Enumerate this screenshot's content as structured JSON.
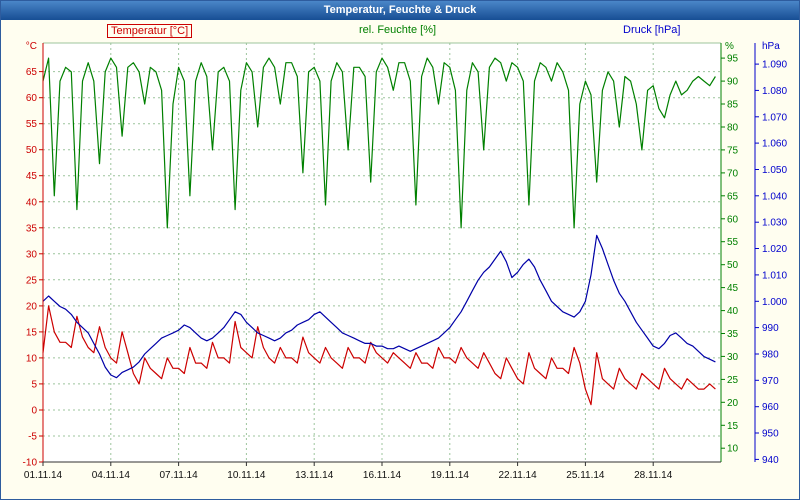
{
  "window": {
    "title": "Temperatur, Feuchte & Druck"
  },
  "legend": {
    "temperature": "Temperatur [°C]",
    "humidity": "rel. Feuchte [%]",
    "pressure": "Druck [hPa]"
  },
  "chart_data": {
    "type": "line",
    "title": "Temperatur, Feuchte & Druck",
    "grid": {
      "color": "#9cc49c",
      "dash": "2,3"
    },
    "x_axis": {
      "tick_labels": [
        "01.11.14",
        "04.11.14",
        "07.11.14",
        "10.11.14",
        "13.11.14",
        "16.11.14",
        "19.11.14",
        "22.11.14",
        "25.11.14",
        "28.11.14"
      ],
      "tick_days": [
        0,
        3,
        6,
        9,
        12,
        15,
        18,
        21,
        24,
        27
      ],
      "day_range": [
        0,
        30
      ]
    },
    "axes": {
      "temperature": {
        "unit": "°C",
        "color": "#cc0000",
        "side": "left",
        "ticks": [
          65,
          60,
          55,
          50,
          45,
          40,
          35,
          30,
          25,
          20,
          15,
          10,
          5,
          0,
          -5,
          -10
        ],
        "range": [
          -10,
          70.5
        ]
      },
      "humidity": {
        "unit": "%",
        "color": "#008000",
        "side": "right-inner",
        "ticks": [
          95,
          90,
          85,
          80,
          75,
          70,
          65,
          60,
          55,
          50,
          45,
          40,
          35,
          30,
          25,
          20,
          15,
          10
        ],
        "range": [
          7,
          98.3
        ]
      },
      "pressure": {
        "unit": "hPa",
        "color": "#0000cc",
        "side": "right-outer",
        "tick_labels": [
          "1.090",
          "1.080",
          "1.070",
          "1.060",
          "1.050",
          "1.040",
          "1.030",
          "1.020",
          "1.010",
          "1.000",
          "990",
          "980",
          "970",
          "960",
          "950",
          "940"
        ],
        "tick_values": [
          1090,
          1080,
          1070,
          1060,
          1050,
          1040,
          1030,
          1020,
          1010,
          1000,
          990,
          980,
          970,
          960,
          950,
          940
        ],
        "range": [
          939,
          1098
        ]
      }
    },
    "x_days": [
      0,
      0.25,
      0.5,
      0.75,
      1,
      1.25,
      1.5,
      1.75,
      2,
      2.25,
      2.5,
      2.75,
      3,
      3.25,
      3.5,
      3.75,
      4,
      4.25,
      4.5,
      4.75,
      5,
      5.25,
      5.5,
      5.75,
      6,
      6.25,
      6.5,
      6.75,
      7,
      7.25,
      7.5,
      7.75,
      8,
      8.25,
      8.5,
      8.75,
      9,
      9.25,
      9.5,
      9.75,
      10,
      10.25,
      10.5,
      10.75,
      11,
      11.25,
      11.5,
      11.75,
      12,
      12.25,
      12.5,
      12.75,
      13,
      13.25,
      13.5,
      13.75,
      14,
      14.25,
      14.5,
      14.75,
      15,
      15.25,
      15.5,
      15.75,
      16,
      16.25,
      16.5,
      16.75,
      17,
      17.25,
      17.5,
      17.75,
      18,
      18.25,
      18.5,
      18.75,
      19,
      19.25,
      19.5,
      19.75,
      20,
      20.25,
      20.5,
      20.75,
      21,
      21.25,
      21.5,
      21.75,
      22,
      22.25,
      22.5,
      22.75,
      23,
      23.25,
      23.5,
      23.75,
      24,
      24.25,
      24.5,
      24.75,
      25,
      25.25,
      25.5,
      25.75,
      26,
      26.25,
      26.5,
      26.75,
      27,
      27.25,
      27.5,
      27.75,
      28,
      28.25,
      28.5,
      28.75,
      29,
      29.25,
      29.5,
      29.75
    ],
    "series": [
      {
        "name": "Temperatur",
        "slug": "temperature",
        "unit": "°C",
        "color": "#cc0000",
        "axis": "temperature",
        "values": [
          11,
          20,
          15,
          13,
          13,
          12,
          18,
          14,
          12,
          11,
          16,
          12,
          10,
          9,
          15,
          11,
          7,
          5,
          10,
          8,
          7,
          6,
          10,
          8,
          8,
          7,
          12,
          9,
          9,
          8,
          13,
          10,
          10,
          9,
          17,
          12,
          11,
          10,
          16,
          12,
          10,
          9,
          12,
          10,
          10,
          9,
          14,
          11,
          10,
          9,
          12,
          10,
          9,
          8,
          12,
          10,
          10,
          9,
          13,
          11,
          10,
          9,
          11,
          10,
          9,
          8,
          11,
          9,
          9,
          8,
          12,
          10,
          10,
          9,
          12,
          10,
          9,
          8,
          11,
          9,
          7,
          6,
          10,
          8,
          6,
          5,
          11,
          8,
          7,
          6,
          10,
          8,
          8,
          7,
          12,
          9,
          4,
          1,
          11,
          6,
          5,
          4,
          8,
          6,
          5,
          4,
          7,
          6,
          5,
          4,
          8,
          6,
          5,
          4,
          6,
          5,
          4,
          4,
          5,
          4
        ]
      },
      {
        "name": "rel. Feuchte",
        "slug": "humidity",
        "unit": "%",
        "color": "#008000",
        "axis": "humidity",
        "values": [
          90,
          95,
          65,
          90,
          93,
          92,
          62,
          90,
          94,
          90,
          72,
          92,
          95,
          93,
          78,
          93,
          94,
          92,
          85,
          93,
          92,
          88,
          58,
          85,
          93,
          90,
          65,
          90,
          94,
          91,
          75,
          92,
          93,
          90,
          62,
          88,
          94,
          92,
          80,
          93,
          95,
          93,
          85,
          94,
          94,
          91,
          70,
          92,
          93,
          90,
          63,
          90,
          94,
          92,
          75,
          93,
          93,
          91,
          68,
          92,
          95,
          93,
          88,
          94,
          94,
          90,
          63,
          91,
          95,
          93,
          85,
          94,
          93,
          88,
          58,
          88,
          94,
          92,
          75,
          93,
          95,
          94,
          90,
          94,
          93,
          90,
          63,
          90,
          94,
          93,
          90,
          94,
          92,
          88,
          58,
          85,
          90,
          87,
          68,
          88,
          92,
          90,
          80,
          91,
          90,
          85,
          75,
          88,
          89,
          84,
          82,
          87,
          90,
          87,
          88,
          90,
          91,
          90,
          89,
          91
        ]
      },
      {
        "name": "Druck",
        "slug": "pressure",
        "unit": "hPa",
        "color": "#0000a8",
        "axis": "pressure",
        "values": [
          1000,
          1002,
          1000,
          998,
          997,
          995,
          992,
          990,
          988,
          984,
          980,
          975,
          972,
          971,
          973,
          974,
          975,
          977,
          980,
          982,
          984,
          986,
          987,
          988,
          989,
          991,
          990,
          988,
          986,
          985,
          986,
          988,
          990,
          993,
          996,
          995,
          992,
          990,
          988,
          987,
          986,
          985,
          986,
          988,
          989,
          991,
          992,
          993,
          995,
          996,
          994,
          992,
          990,
          988,
          987,
          986,
          985,
          984,
          984,
          983,
          983,
          982,
          982,
          983,
          982,
          981,
          982,
          983,
          984,
          985,
          986,
          988,
          990,
          993,
          996,
          1000,
          1004,
          1008,
          1011,
          1013,
          1016,
          1019,
          1015,
          1009,
          1011,
          1014,
          1016,
          1013,
          1008,
          1004,
          1000,
          998,
          996,
          995,
          994,
          996,
          1000,
          1010,
          1025,
          1020,
          1014,
          1008,
          1003,
          1000,
          996,
          992,
          989,
          986,
          983,
          982,
          984,
          987,
          988,
          986,
          984,
          983,
          981,
          979,
          978,
          977
        ]
      }
    ]
  }
}
